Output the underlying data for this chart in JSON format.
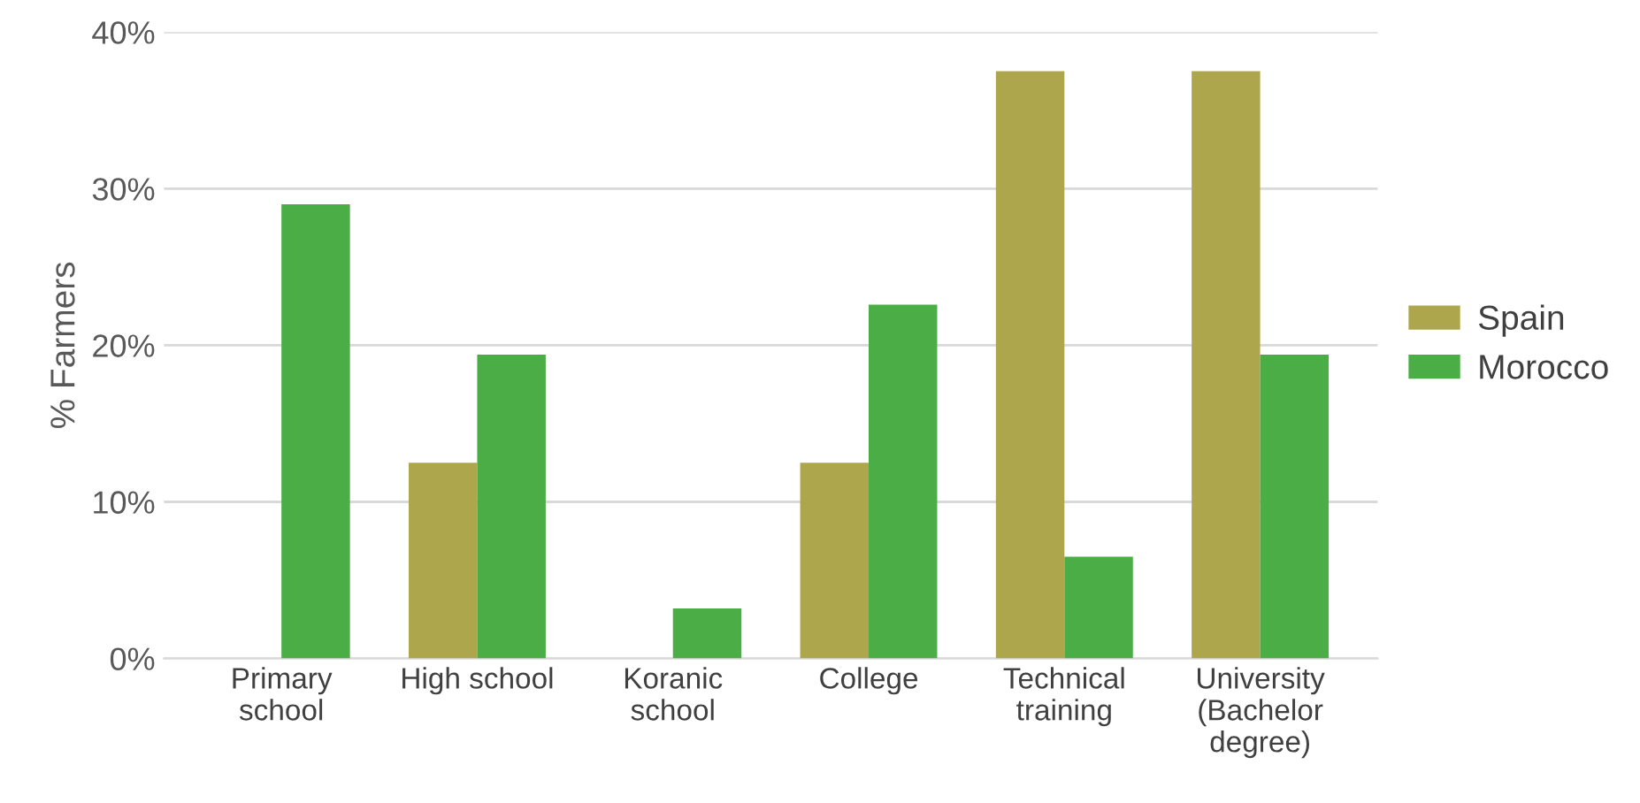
{
  "chart_data": {
    "type": "bar",
    "ylabel": "% Farmers",
    "categories": [
      "Primary\nschool",
      "High school",
      "Koranic\nschool",
      "College",
      "Technical\ntraining",
      "University\n(Bachelor\ndegree)"
    ],
    "series": [
      {
        "name": "Spain",
        "color": "#aea64c",
        "values": [
          0,
          12.5,
          0,
          12.5,
          37.5,
          37.5
        ]
      },
      {
        "name": "Morocco",
        "color": "#4aad45",
        "values": [
          29.0,
          19.4,
          3.2,
          22.6,
          6.5,
          19.4
        ]
      }
    ],
    "ylim": [
      0,
      40
    ],
    "yticks": [
      {
        "value": 0,
        "label": "0%"
      },
      {
        "value": 10,
        "label": "10%"
      },
      {
        "value": 20,
        "label": "20%"
      },
      {
        "value": 30,
        "label": "30%"
      },
      {
        "value": 40,
        "label": "40%"
      }
    ],
    "grid": "y",
    "legend": "right"
  }
}
